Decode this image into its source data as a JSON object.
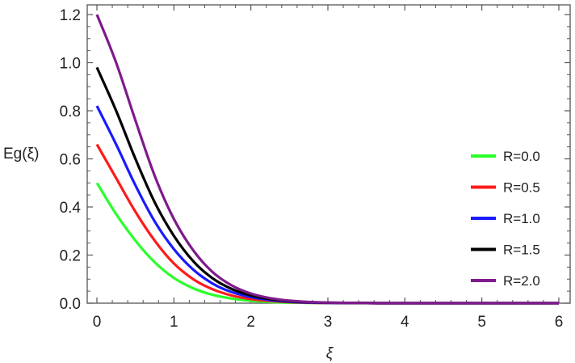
{
  "chart_data": {
    "type": "line",
    "ylabel": "Eg(ξ)",
    "xlabel": "ξ",
    "xlim": [
      0,
      6
    ],
    "ylim": [
      0,
      1.22
    ],
    "xticks": [
      "0",
      "1",
      "2",
      "3",
      "4",
      "5",
      "6"
    ],
    "yticks": [
      "0.0",
      "0.2",
      "0.4",
      "0.6",
      "0.8",
      "1.0",
      "1.2"
    ],
    "legend_position": "right",
    "grid": false,
    "x": [
      0,
      0.25,
      0.5,
      0.75,
      1.0,
      1.25,
      1.5,
      1.75,
      2.0,
      2.25,
      2.5,
      2.75,
      3.0,
      3.5,
      4.0,
      5.0,
      6.0
    ],
    "series": [
      {
        "name": "R=0.0",
        "color": "#2aff2a",
        "values": [
          0.5,
          0.37,
          0.26,
          0.17,
          0.105,
          0.062,
          0.035,
          0.019,
          0.01,
          0.005,
          0.0025,
          0.0012,
          0.0006,
          0.0001,
          0.0,
          0.0,
          0.0
        ]
      },
      {
        "name": "R=0.5",
        "color": "#ff1a1a",
        "values": [
          0.66,
          0.52,
          0.38,
          0.26,
          0.165,
          0.1,
          0.058,
          0.032,
          0.017,
          0.009,
          0.0045,
          0.002,
          0.001,
          0.0002,
          0.0,
          0.0,
          0.0
        ]
      },
      {
        "name": "R=1.0",
        "color": "#1a1aff",
        "values": [
          0.82,
          0.66,
          0.49,
          0.34,
          0.225,
          0.14,
          0.082,
          0.046,
          0.025,
          0.013,
          0.0065,
          0.003,
          0.0015,
          0.0003,
          0.0,
          0.0,
          0.0
        ]
      },
      {
        "name": "R=1.5",
        "color": "#000000",
        "values": [
          0.98,
          0.8,
          0.6,
          0.42,
          0.28,
          0.175,
          0.104,
          0.059,
          0.032,
          0.017,
          0.0085,
          0.004,
          0.002,
          0.0004,
          0.0,
          0.0,
          0.0
        ]
      },
      {
        "name": "R=2.0",
        "color": "#7f1a8c",
        "values": [
          1.2,
          1.0,
          0.76,
          0.53,
          0.35,
          0.22,
          0.13,
          0.074,
          0.04,
          0.021,
          0.0105,
          0.005,
          0.0025,
          0.0005,
          0.0,
          0.0,
          0.0
        ]
      }
    ]
  }
}
